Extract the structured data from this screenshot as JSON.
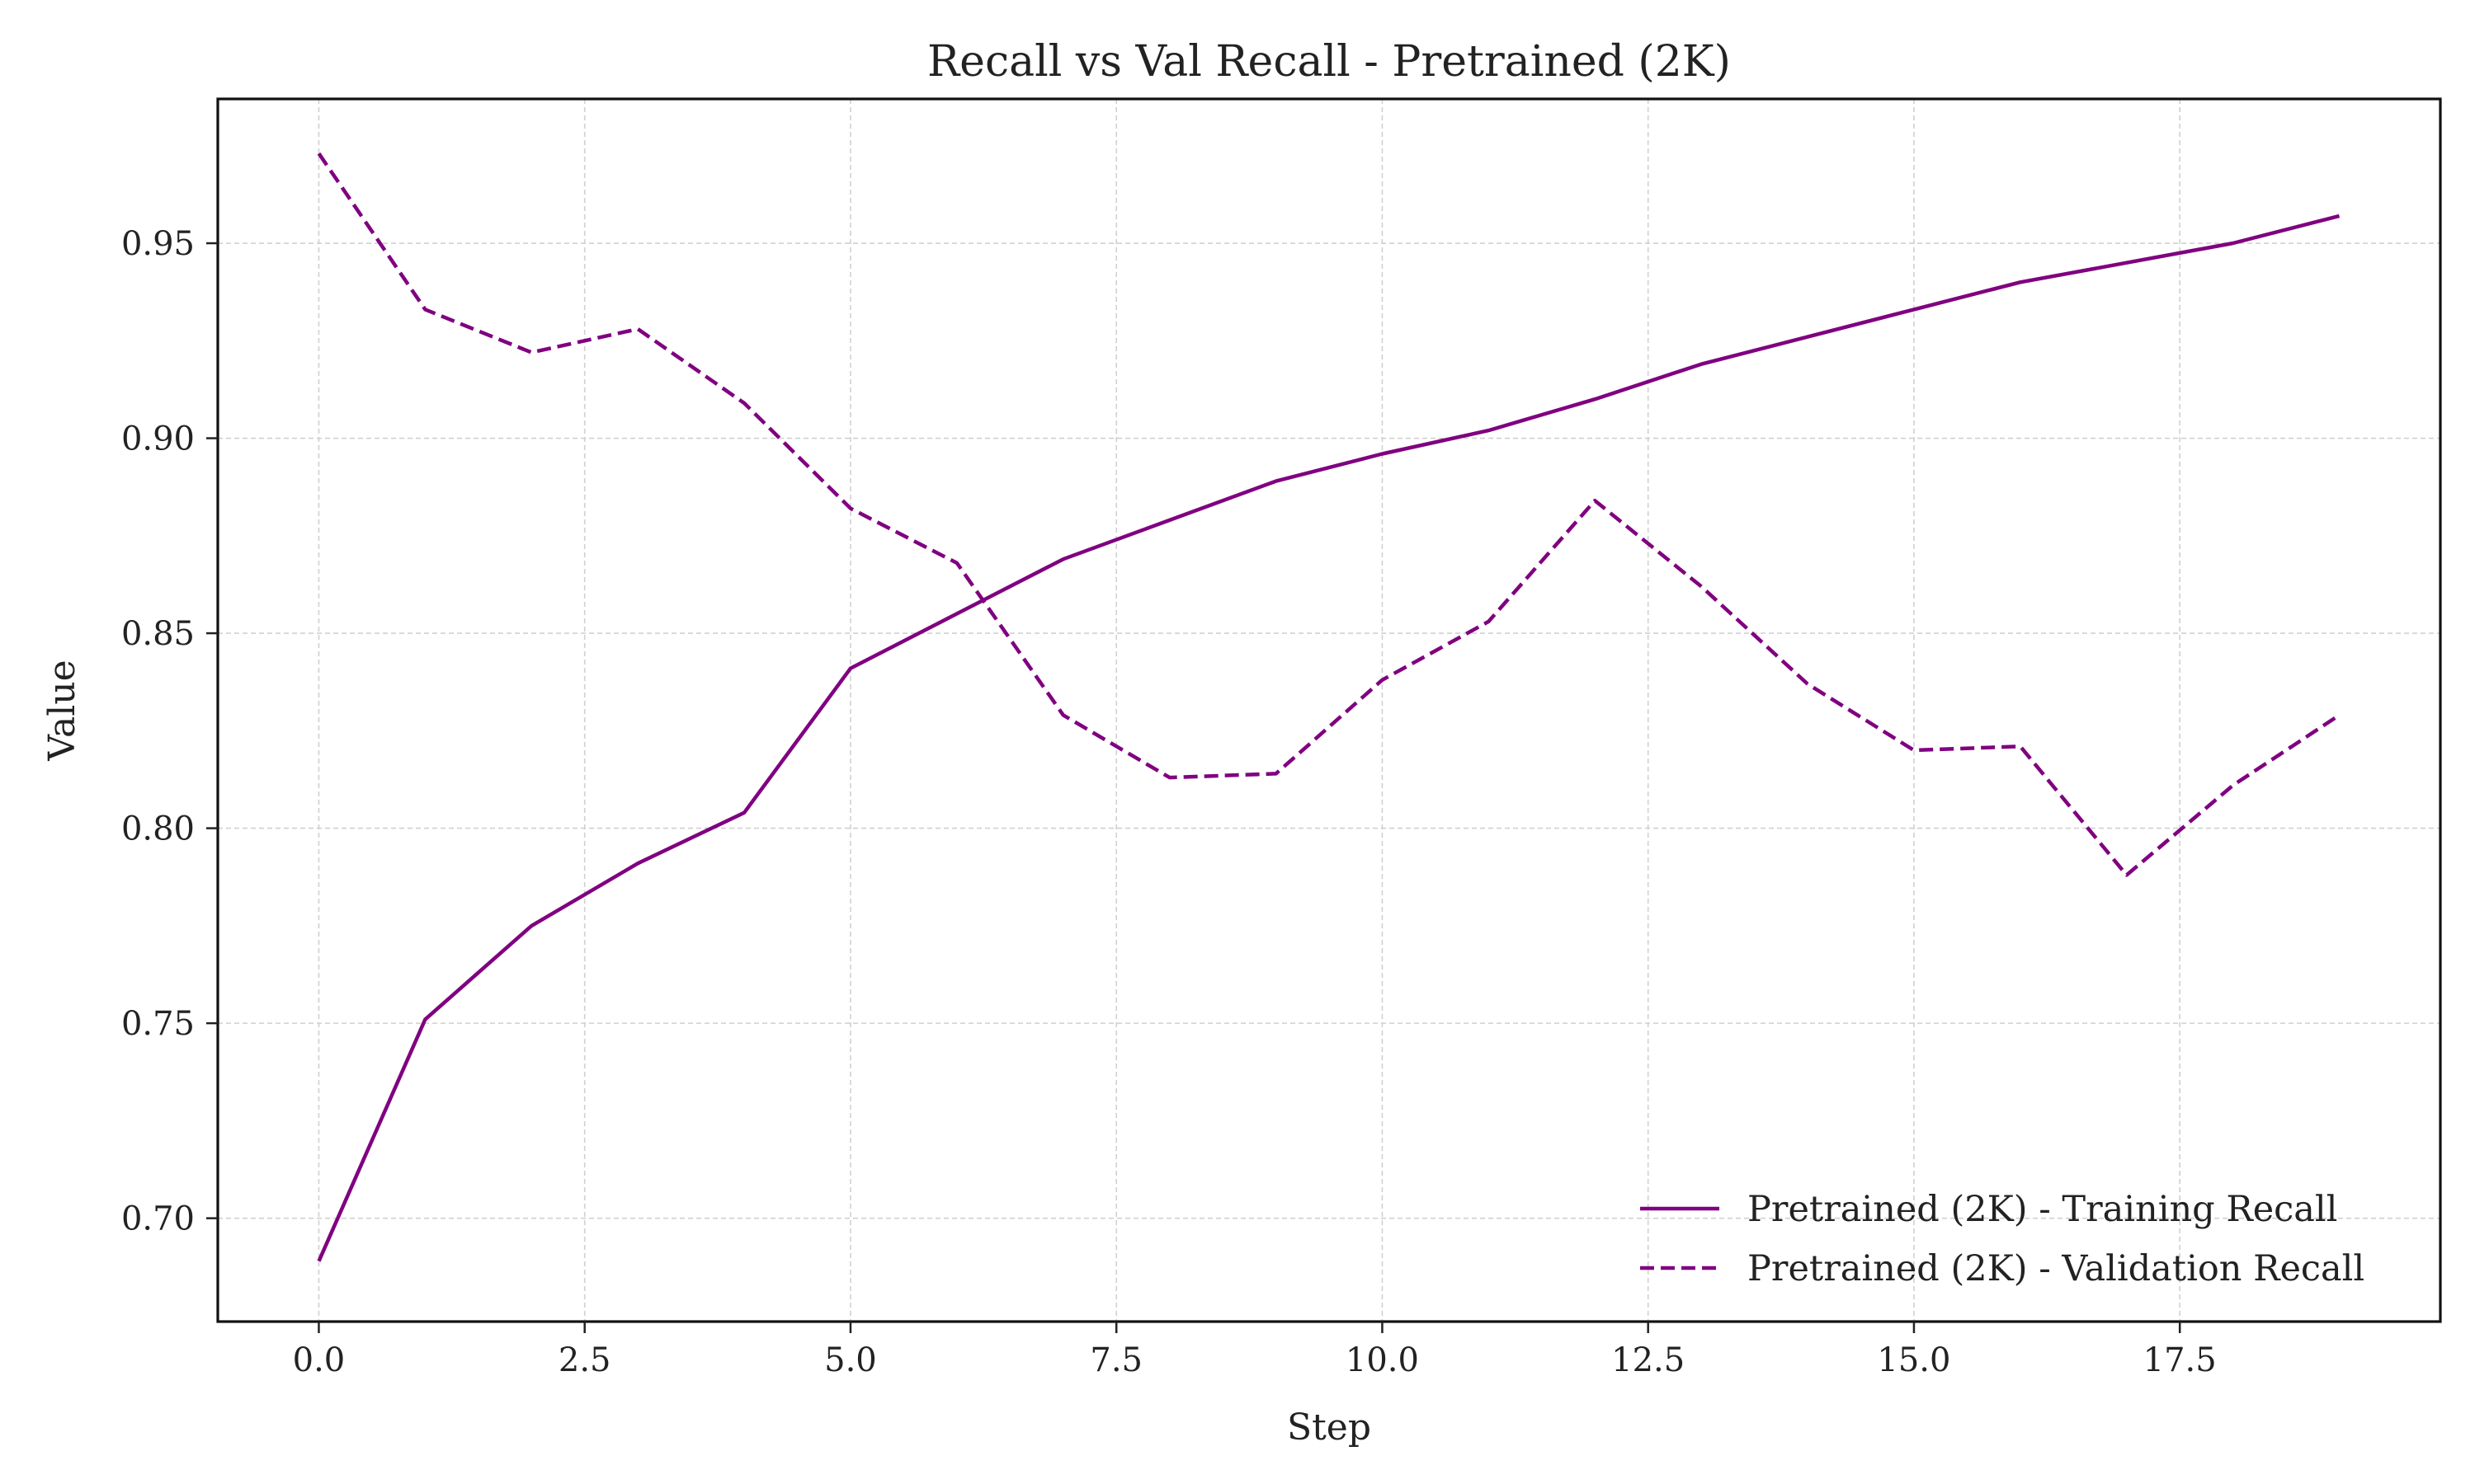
{
  "chart_data": {
    "type": "line",
    "title": "Recall vs Val Recall - Pretrained (2K)",
    "xlabel": "Step",
    "ylabel": "Value",
    "xlim": [
      -0.95,
      19.95
    ],
    "ylim": [
      0.6735,
      0.987
    ],
    "xticks": [
      0.0,
      2.5,
      5.0,
      7.5,
      10.0,
      12.5,
      15.0,
      17.5
    ],
    "xtick_labels": [
      "0.0",
      "2.5",
      "5.0",
      "7.5",
      "10.0",
      "12.5",
      "15.0",
      "17.5"
    ],
    "yticks": [
      0.7,
      0.75,
      0.8,
      0.85,
      0.9,
      0.95
    ],
    "ytick_labels": [
      "0.70",
      "0.75",
      "0.80",
      "0.85",
      "0.90",
      "0.95"
    ],
    "grid": true,
    "legend_position": "lower-right",
    "x": [
      0,
      1,
      2,
      3,
      4,
      5,
      6,
      7,
      8,
      9,
      10,
      11,
      12,
      13,
      14,
      15,
      16,
      17,
      18,
      19
    ],
    "series": [
      {
        "name": "Pretrained (2K) - Training Recall",
        "style": "solid",
        "color": "#800080",
        "values": [
          0.689,
          0.751,
          0.775,
          0.791,
          0.804,
          0.841,
          0.855,
          0.869,
          0.879,
          0.889,
          0.896,
          0.902,
          0.91,
          0.919,
          0.926,
          0.933,
          0.94,
          0.945,
          0.95,
          0.957
        ]
      },
      {
        "name": "Pretrained (2K) - Validation Recall",
        "style": "dashed",
        "color": "#800080",
        "values": [
          0.973,
          0.933,
          0.922,
          0.928,
          0.909,
          0.882,
          0.868,
          0.829,
          0.813,
          0.814,
          0.838,
          0.853,
          0.884,
          0.862,
          0.837,
          0.82,
          0.821,
          0.788,
          0.811,
          0.829
        ]
      }
    ]
  }
}
